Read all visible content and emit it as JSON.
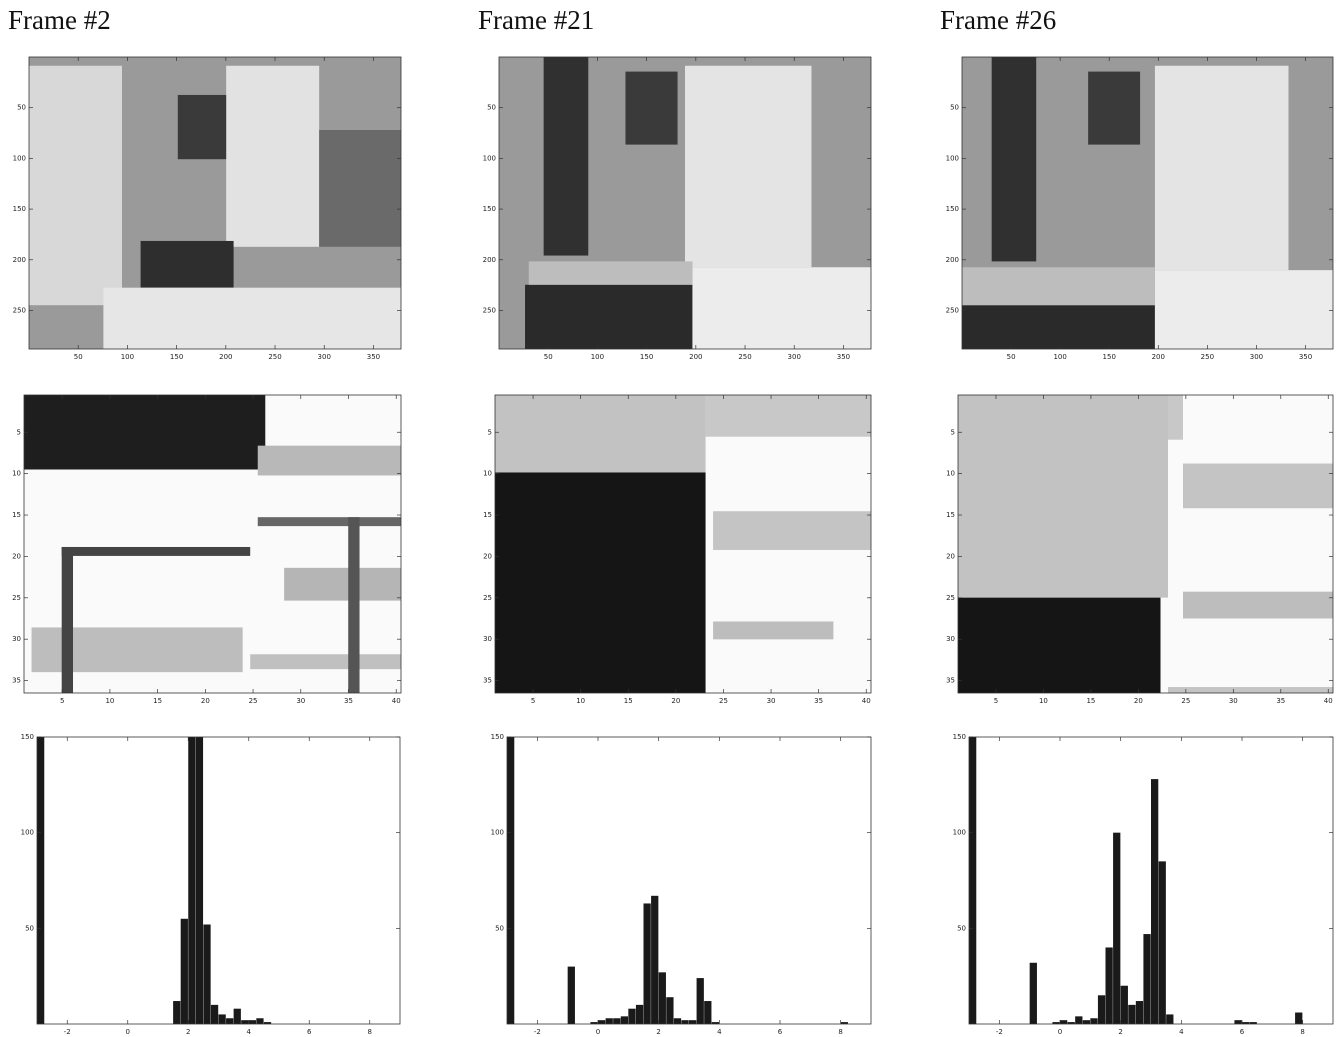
{
  "chart_data": [
    {
      "type": "image",
      "title": "Frame #2",
      "xlim": [
        0,
        378
      ],
      "ylim": [
        0,
        288
      ],
      "xticks": [
        50,
        100,
        150,
        200,
        250,
        300,
        350
      ],
      "yticks": [
        50,
        100,
        150,
        200,
        250
      ]
    },
    {
      "type": "image",
      "xlim": [
        1,
        40.5
      ],
      "ylim": [
        0.5,
        36.5
      ],
      "xticks": [
        5,
        10,
        15,
        20,
        25,
        30,
        35,
        40
      ],
      "yticks": [
        5,
        10,
        15,
        20,
        25,
        30,
        35
      ]
    },
    {
      "type": "histogram",
      "xlim": [
        -3,
        9
      ],
      "ylim": [
        0,
        150
      ],
      "xticks": [
        -2,
        0,
        2,
        4,
        6,
        8
      ],
      "yticks": [
        50,
        100,
        150
      ],
      "color": "#1a1a1a",
      "bins": [
        -3,
        -2.75,
        -2.5,
        -2.25,
        -2,
        -1.75,
        -1.5,
        -1.25,
        -1,
        -0.75,
        -0.5,
        -0.25,
        0,
        0.25,
        0.5,
        0.75,
        1,
        1.25,
        1.5,
        1.75,
        2,
        2.25,
        2.5,
        2.75,
        3,
        3.25,
        3.5,
        3.75,
        4,
        4.25,
        4.5,
        4.75,
        5,
        5.25,
        5.5,
        5.75,
        6,
        6.25,
        6.5,
        6.75,
        7,
        7.25,
        7.5,
        7.75,
        8,
        8.25,
        8.5,
        8.75,
        9
      ],
      "values": [
        150,
        0,
        0,
        0,
        0,
        0,
        0,
        0,
        0,
        0,
        0,
        0,
        0,
        0,
        0,
        0,
        0,
        0,
        12,
        55,
        150,
        150,
        52,
        10,
        5,
        3,
        8,
        2,
        2,
        3,
        1,
        0,
        0,
        0,
        0,
        0,
        0,
        0,
        0,
        0,
        0,
        0,
        0,
        0,
        0,
        0,
        0,
        0
      ]
    },
    {
      "type": "image",
      "title": "Frame #21",
      "xlim": [
        0,
        378
      ],
      "ylim": [
        0,
        288
      ],
      "xticks": [
        50,
        100,
        150,
        200,
        250,
        300,
        350
      ],
      "yticks": [
        50,
        100,
        150,
        200,
        250
      ]
    },
    {
      "type": "image",
      "xlim": [
        1,
        40.5
      ],
      "ylim": [
        0.5,
        36.5
      ],
      "xticks": [
        5,
        10,
        15,
        20,
        25,
        30,
        35,
        40
      ],
      "yticks": [
        5,
        10,
        15,
        20,
        25,
        30,
        35
      ]
    },
    {
      "type": "histogram",
      "xlim": [
        -3,
        9
      ],
      "ylim": [
        0,
        150
      ],
      "xticks": [
        -2,
        0,
        2,
        4,
        6,
        8
      ],
      "yticks": [
        50,
        100,
        150
      ],
      "color": "#1a1a1a",
      "bins": [
        -3,
        -2.75,
        -2.5,
        -2.25,
        -2,
        -1.75,
        -1.5,
        -1.25,
        -1,
        -0.75,
        -0.5,
        -0.25,
        0,
        0.25,
        0.5,
        0.75,
        1,
        1.25,
        1.5,
        1.75,
        2,
        2.25,
        2.5,
        2.75,
        3,
        3.25,
        3.5,
        3.75,
        4,
        4.25,
        4.5,
        4.75,
        5,
        5.25,
        5.5,
        5.75,
        6,
        6.25,
        6.5,
        6.75,
        7,
        7.25,
        7.5,
        7.75,
        8,
        8.25,
        8.5,
        8.75,
        9
      ],
      "values": [
        150,
        0,
        0,
        0,
        0,
        0,
        0,
        0,
        30,
        0,
        0,
        1,
        2,
        3,
        3,
        4,
        8,
        10,
        63,
        67,
        27,
        14,
        3,
        2,
        2,
        24,
        12,
        1,
        0,
        0,
        0,
        0,
        0,
        0,
        0,
        0,
        0,
        0,
        0,
        0,
        0,
        0,
        0,
        0,
        1,
        0,
        0,
        0
      ]
    },
    {
      "type": "image",
      "title": "Frame #26",
      "xlim": [
        0,
        378
      ],
      "ylim": [
        0,
        288
      ],
      "xticks": [
        50,
        100,
        150,
        200,
        250,
        300,
        350
      ],
      "yticks": [
        50,
        100,
        150,
        200,
        250
      ]
    },
    {
      "type": "image",
      "xlim": [
        1,
        40.5
      ],
      "ylim": [
        0.5,
        36.5
      ],
      "xticks": [
        5,
        10,
        15,
        20,
        25,
        30,
        35,
        40
      ],
      "yticks": [
        5,
        10,
        15,
        20,
        25,
        30,
        35
      ]
    },
    {
      "type": "histogram",
      "xlim": [
        -3,
        9
      ],
      "ylim": [
        0,
        150
      ],
      "xticks": [
        -2,
        0,
        2,
        4,
        6,
        8
      ],
      "yticks": [
        50,
        100,
        150
      ],
      "color": "#1a1a1a",
      "bins": [
        -3,
        -2.75,
        -2.5,
        -2.25,
        -2,
        -1.75,
        -1.5,
        -1.25,
        -1,
        -0.75,
        -0.5,
        -0.25,
        0,
        0.25,
        0.5,
        0.75,
        1,
        1.25,
        1.5,
        1.75,
        2,
        2.25,
        2.5,
        2.75,
        3,
        3.25,
        3.5,
        3.75,
        4,
        4.25,
        4.5,
        4.75,
        5,
        5.25,
        5.5,
        5.75,
        6,
        6.25,
        6.5,
        6.75,
        7,
        7.25,
        7.5,
        7.75,
        8,
        8.25,
        8.5,
        8.75,
        9
      ],
      "values": [
        150,
        0,
        0,
        0,
        0,
        0,
        0,
        0,
        32,
        0,
        0,
        1,
        2,
        1,
        4,
        2,
        3,
        15,
        40,
        100,
        20,
        10,
        12,
        47,
        128,
        85,
        5,
        0,
        0,
        0,
        0,
        0,
        0,
        0,
        0,
        2,
        1,
        1,
        0,
        0,
        0,
        0,
        0,
        6,
        0,
        0,
        0,
        0
      ]
    }
  ]
}
